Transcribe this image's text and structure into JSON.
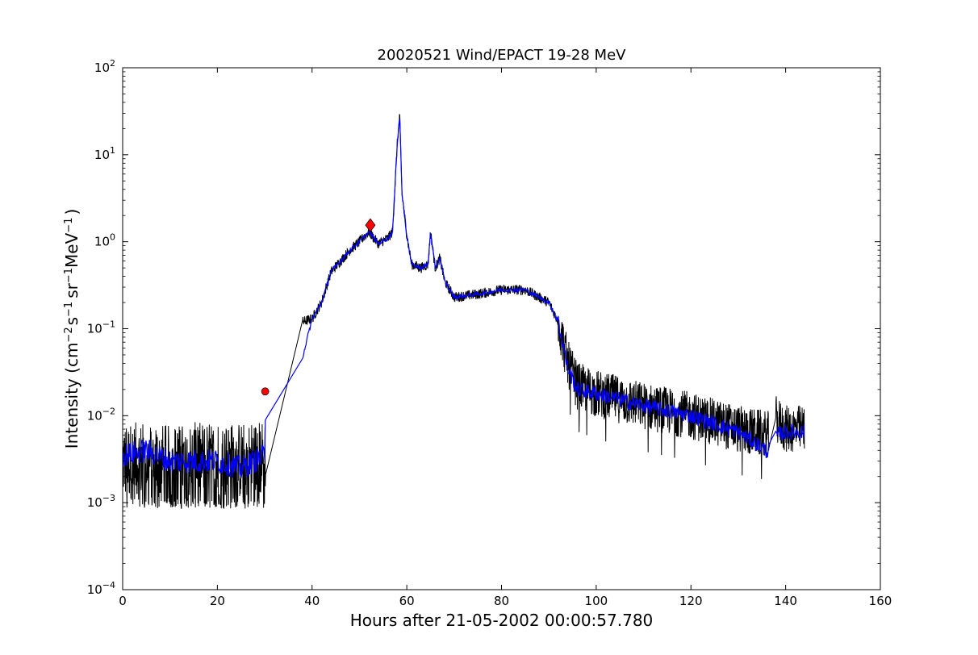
{
  "chart_data": {
    "type": "line",
    "title": "20020521 Wind/EPACT 19-28 MeV",
    "xlabel": "Hours after 21-05-2002 00:00:57.780",
    "ylabel": {
      "base": "Intensity (cm",
      "exp1": "−2",
      "s": "s",
      "exp2": "−1",
      "sr": "sr",
      "exp3": "−1",
      "mev": "MeV",
      "exp4": "−1",
      "close": ")"
    },
    "xlim": [
      0,
      160
    ],
    "ylim": [
      0.0001,
      100
    ],
    "yscale": "log",
    "grid": false,
    "x_ticks": [
      0,
      20,
      40,
      60,
      80,
      100,
      120,
      140,
      160
    ],
    "x_tick_labels": [
      "0",
      "20",
      "40",
      "60",
      "80",
      "100",
      "120",
      "140",
      "160"
    ],
    "y_ticks": [
      0.0001,
      0.001,
      0.01,
      0.1,
      1,
      10,
      100
    ],
    "y_tick_labels": [
      {
        "base": "10",
        "exp": "−4"
      },
      {
        "base": "10",
        "exp": "−3"
      },
      {
        "base": "10",
        "exp": "−2"
      },
      {
        "base": "10",
        "exp": "−1"
      },
      {
        "base": "10",
        "exp": "0"
      },
      {
        "base": "10",
        "exp": "1"
      },
      {
        "base": "10",
        "exp": "2"
      }
    ],
    "series": [
      {
        "color": "#000000",
        "noise": "high",
        "x": [
          0,
          5,
          10,
          15,
          20,
          25,
          30,
          30.2,
          38,
          40,
          42,
          44,
          46,
          48,
          50,
          52,
          54,
          56,
          57,
          58,
          58.5,
          59,
          60,
          61,
          63,
          64.5,
          65,
          66,
          67,
          68,
          70,
          75,
          80,
          85,
          90,
          92,
          94,
          96,
          100,
          110,
          120,
          130,
          136.5,
          137,
          138,
          140,
          144
        ],
        "y": [
          0.003,
          0.003,
          0.0028,
          0.003,
          0.003,
          0.003,
          0.0032,
          0.004,
          0.12,
          0.13,
          0.2,
          0.45,
          0.6,
          0.8,
          1.0,
          1.3,
          0.95,
          1.1,
          1.3,
          14,
          28,
          3.5,
          1.2,
          0.55,
          0.5,
          0.55,
          1.3,
          0.5,
          0.65,
          0.35,
          0.23,
          0.25,
          0.28,
          0.28,
          0.2,
          0.12,
          0.04,
          0.022,
          0.018,
          0.013,
          0.01,
          0.007,
          0.006,
          0.0045,
          0.009,
          0.007,
          0.007
        ]
      },
      {
        "color": "#0000ff",
        "noise": "low",
        "x": [
          0,
          5,
          10,
          15,
          20,
          25,
          30,
          30.2,
          38,
          40,
          42,
          44,
          46,
          48,
          50,
          52,
          54,
          56,
          57,
          58,
          58.5,
          59,
          60,
          61,
          63,
          64.5,
          65,
          66,
          67,
          68,
          70,
          75,
          80,
          85,
          90,
          92,
          94,
          96,
          100,
          110,
          120,
          130,
          136.5,
          137,
          138,
          140,
          144
        ],
        "y": [
          0.0035,
          0.004,
          0.003,
          0.003,
          0.003,
          0.0025,
          0.0035,
          0.025,
          0.047,
          0.13,
          0.2,
          0.45,
          0.6,
          0.8,
          1.0,
          1.3,
          0.95,
          1.1,
          1.3,
          14,
          28,
          3.5,
          1.2,
          0.55,
          0.5,
          0.55,
          1.3,
          0.5,
          0.65,
          0.35,
          0.23,
          0.25,
          0.28,
          0.28,
          0.2,
          0.12,
          0.035,
          0.02,
          0.018,
          0.013,
          0.01,
          0.0065,
          0.0038,
          0.004,
          0.006,
          0.0065,
          0.0065
        ]
      }
    ],
    "markers": [
      {
        "x": 30.1,
        "y": 0.019,
        "shape": "circle",
        "color": "#ff0000"
      },
      {
        "x": 52.3,
        "y": 1.55,
        "shape": "diamond",
        "color": "#ff0000"
      }
    ]
  }
}
